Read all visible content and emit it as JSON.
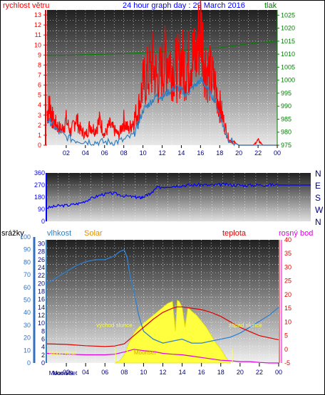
{
  "chart_data": [
    {
      "type": "line",
      "title": "24 hour graph day : 29 March 2016",
      "left_axis_label": "rychlost větru",
      "right_axis_label": "tlak",
      "x_ticks": [
        "02",
        "04",
        "06",
        "08",
        "10",
        "12",
        "14",
        "16",
        "18",
        "20",
        "22",
        "00"
      ],
      "y_left_ticks": [
        0,
        1,
        2,
        3,
        4,
        5,
        6,
        7,
        8,
        9,
        10,
        11,
        12,
        13
      ],
      "y_left_range": [
        0,
        13.5
      ],
      "y_right_ticks": [
        975,
        980,
        985,
        990,
        995,
        1000,
        1005,
        1010,
        1015,
        1020,
        1025
      ],
      "y_right_range": [
        975,
        1027
      ],
      "colors": {
        "gust": "#ff0000",
        "wind": "#3080c0",
        "pressure": "#008000",
        "left_axis": "#ff0000",
        "right_axis": "#008000"
      },
      "series": [
        {
          "name": "gust",
          "x": [
            0,
            0.3,
            0.6,
            1,
            1.5,
            2,
            2.5,
            3,
            3.5,
            4,
            4.5,
            5,
            5.5,
            6,
            6.5,
            7,
            7.5,
            8,
            8.5,
            9,
            9.5,
            10,
            10.5,
            11,
            11.5,
            12,
            12.5,
            13,
            13.5,
            14,
            14.5,
            15,
            15.5,
            16,
            16.5,
            17,
            17.5,
            18,
            18.5,
            19,
            19.5,
            20,
            20.5,
            21,
            21.5,
            22,
            22.5,
            23,
            23.5,
            24
          ],
          "y": [
            3.2,
            4,
            2.5,
            2,
            1.5,
            2.5,
            1.2,
            2.8,
            1.5,
            1,
            2,
            1.5,
            2.5,
            1,
            2,
            1.5,
            1,
            2.5,
            1.5,
            2.5,
            3.5,
            6,
            7,
            8,
            6.5,
            7.5,
            9,
            8,
            7.5,
            8.5,
            7.5,
            9,
            8.5,
            12,
            8,
            7,
            6,
            4,
            2,
            0.5,
            0.3,
            0,
            0,
            0,
            0,
            0.5,
            0,
            0,
            0,
            0
          ]
        },
        {
          "name": "wind",
          "x": [
            0,
            0.5,
            1,
            2,
            3,
            4,
            5,
            6,
            7,
            8,
            9,
            9.5,
            10,
            10.5,
            11,
            11.5,
            12,
            12.5,
            13,
            13.5,
            14,
            14.5,
            15,
            15.5,
            16,
            16.5,
            17,
            17.5,
            18,
            18.5,
            19,
            20,
            21,
            22,
            23,
            24
          ],
          "y": [
            2.5,
            2.2,
            1.5,
            0.8,
            0.5,
            0.4,
            0.3,
            0.3,
            0.3,
            0.5,
            1,
            2,
            3.5,
            4,
            4.5,
            5,
            4.8,
            5.2,
            5.5,
            5.8,
            5.5,
            5,
            5.6,
            6,
            6.5,
            6,
            5.2,
            4.5,
            3,
            1.5,
            0.5,
            0,
            0,
            0,
            0,
            0
          ]
        },
        {
          "name": "pressure",
          "x": [
            0,
            2,
            4,
            6,
            8,
            10,
            12,
            14,
            16,
            18,
            20,
            22,
            24
          ],
          "y": [
            1009.5,
            1009.6,
            1009.8,
            1010,
            1010.2,
            1010.5,
            1011,
            1011.5,
            1012,
            1012.5,
            1013.5,
            1014.5,
            1015
          ]
        }
      ]
    },
    {
      "type": "line",
      "x_ticks": [],
      "y_ticks": [
        0,
        90,
        180,
        270,
        360
      ],
      "y_range": [
        0,
        360
      ],
      "compass": [
        "N",
        "W",
        "S",
        "E",
        "N"
      ],
      "colors": {
        "direction": "#0000ff",
        "axis": "#0000ff"
      },
      "series": [
        {
          "name": "direction",
          "x": [
            0,
            1,
            2,
            3,
            4,
            5,
            6,
            7,
            8,
            8.5,
            9,
            9.5,
            10,
            11,
            12,
            13,
            14,
            15,
            16,
            17,
            18,
            19,
            20,
            21,
            22,
            23,
            24
          ],
          "y": [
            100,
            115,
            120,
            135,
            170,
            200,
            210,
            190,
            180,
            175,
            190,
            210,
            250,
            260,
            265,
            270,
            272,
            268,
            275,
            270,
            268,
            270,
            272,
            270,
            270,
            270,
            270
          ]
        }
      ]
    },
    {
      "type": "line",
      "legend": [
        "srážky",
        "vlhkost",
        "Solar",
        "teplota",
        "rosný bod"
      ],
      "x_ticks": [
        "02",
        "04",
        "06",
        "08",
        "10",
        "12",
        "14",
        "16",
        "18",
        "20",
        "22",
        "00"
      ],
      "y_rain_ticks": [
        0,
        10,
        20,
        30,
        40,
        50,
        60,
        70,
        80,
        90,
        100
      ],
      "y_left_ticks": [
        0,
        2,
        4,
        6,
        8,
        10,
        12,
        14,
        16,
        18,
        20,
        22,
        24,
        26,
        28,
        30
      ],
      "y_left_range": [
        0,
        31
      ],
      "y_right_ticks": [
        -5,
        0,
        5,
        10,
        15,
        20,
        25,
        30,
        35,
        40
      ],
      "y_right_range": [
        -5,
        40
      ],
      "annotations": [
        "Moon Rise",
        "Moon Set",
        "východ slunce",
        "západ slunce",
        "Moonset"
      ],
      "colors": {
        "humidity": "#3080d0",
        "temperature": "#e00000",
        "dewpoint": "#e000e0",
        "solar": "#ffff40",
        "rain_axis": "#3070c0",
        "humidity_axis": "#3080c0",
        "solar_label": "#e09000",
        "temp_axis": "#e00000",
        "dew_axis": "#e000e0"
      },
      "series": [
        {
          "name": "vlhkost",
          "x": [
            0,
            1,
            2,
            3,
            4,
            5,
            6,
            7,
            7.5,
            8,
            8.3,
            8.6,
            9,
            9.5,
            10,
            11,
            12,
            13,
            14,
            15,
            16,
            17,
            18,
            19,
            20,
            21,
            22,
            23,
            24
          ],
          "y": [
            20,
            21.5,
            23,
            24.5,
            25.5,
            26,
            26,
            27,
            28,
            28.5,
            26.5,
            22,
            18,
            12,
            8,
            6,
            5,
            5.5,
            6,
            5,
            5,
            5.5,
            6,
            6.5,
            7.5,
            9,
            10.5,
            12,
            14
          ]
        },
        {
          "name": "teplota",
          "x": [
            0,
            2,
            4,
            6,
            7,
            8,
            9,
            10,
            11,
            12,
            13,
            13.5,
            14,
            15,
            16,
            17,
            18,
            19,
            20,
            21,
            22,
            23,
            24
          ],
          "y": [
            2,
            1.8,
            1.3,
            1,
            1.2,
            2,
            5,
            8,
            11,
            13.5,
            15,
            15.5,
            15.5,
            15,
            14.5,
            13.5,
            12,
            10,
            8,
            6.5,
            5,
            4.2,
            3.5
          ]
        },
        {
          "name": "rosný bod",
          "x": [
            0,
            2,
            4,
            6,
            7,
            8,
            9,
            10,
            11,
            12,
            13,
            14,
            15,
            16,
            17,
            18,
            19,
            20,
            21,
            22,
            23,
            24
          ],
          "y": [
            -1.5,
            -1.8,
            -2,
            -2,
            -1.8,
            -1,
            0,
            -0.5,
            -0.8,
            -1.5,
            -1.8,
            -2,
            -2.5,
            -3,
            -3.5,
            -4,
            -4.2,
            -4.5,
            -4.5,
            -4.8,
            -5,
            -5
          ]
        },
        {
          "name": "Solar",
          "x": [
            7,
            7.5,
            8,
            8.5,
            9,
            9.5,
            10,
            10.5,
            11,
            11.5,
            12,
            12.5,
            13,
            13.3,
            13.5,
            13.7,
            14,
            14.3,
            14.6,
            15,
            15.5,
            16,
            16.5,
            17,
            17.5,
            18,
            18.5,
            19
          ],
          "y": [
            0,
            0.5,
            2,
            5,
            7.5,
            9,
            10,
            11,
            12,
            13,
            14,
            15,
            15.5,
            8,
            15.8,
            15.5,
            14,
            9,
            14,
            13,
            12,
            10.5,
            9,
            7,
            5,
            3.5,
            1.5,
            0
          ]
        }
      ]
    }
  ]
}
